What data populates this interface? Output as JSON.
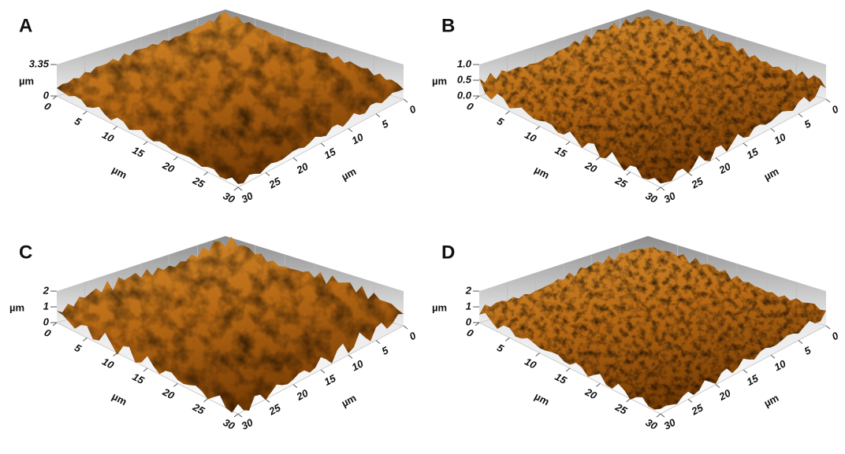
{
  "panels": [
    {
      "label": "A",
      "z_unit": "µm",
      "z_ticks": [
        "3.35",
        "0"
      ],
      "x_ticks": [
        "0",
        "5",
        "10",
        "15",
        "20",
        "25",
        "30"
      ],
      "x_unit": "µm",
      "y_ticks": [
        "0",
        "5",
        "10",
        "15",
        "20",
        "25",
        "30"
      ],
      "y_unit": "µm"
    },
    {
      "label": "B",
      "z_unit": "µm",
      "z_ticks": [
        "1.0",
        "0.5",
        "0.0"
      ],
      "x_ticks": [
        "0",
        "5",
        "10",
        "15",
        "20",
        "25",
        "30"
      ],
      "x_unit": "µm",
      "y_ticks": [
        "0",
        "5",
        "10",
        "15",
        "20",
        "25",
        "30"
      ],
      "y_unit": "µm"
    },
    {
      "label": "C",
      "z_unit": "µm",
      "z_ticks": [
        "2",
        "1",
        "0"
      ],
      "x_ticks": [
        "0",
        "5",
        "10",
        "15",
        "20",
        "25",
        "30"
      ],
      "x_unit": "µm",
      "y_ticks": [
        "0",
        "5",
        "10",
        "15",
        "20",
        "25",
        "30"
      ],
      "y_unit": "µm"
    },
    {
      "label": "D",
      "z_unit": "µm",
      "z_ticks": [
        "2",
        "1",
        "0"
      ],
      "x_ticks": [
        "0",
        "5",
        "10",
        "15",
        "20",
        "25",
        "30"
      ],
      "x_unit": "µm",
      "y_ticks": [
        "0",
        "5",
        "10",
        "15",
        "20",
        "25",
        "30"
      ],
      "y_unit": "µm"
    }
  ]
}
